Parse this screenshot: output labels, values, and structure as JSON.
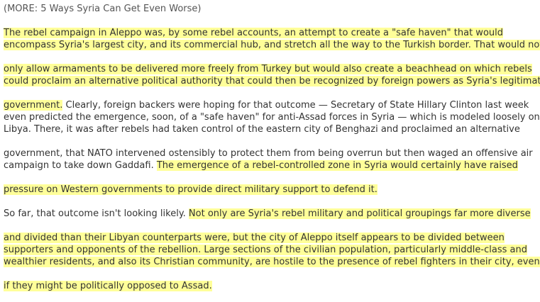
{
  "article": {
    "more_link": "(MORE: 5 Ways Syria Can Get Even Worse)",
    "highlight_color": "#ffff99",
    "lines": [
      {
        "segments": [
          {
            "text": "The rebel campaign in Aleppo was, by some rebel accounts, an attempt to create a \"safe haven\" that would",
            "hl": true
          }
        ]
      },
      {
        "segments": [
          {
            "text": "encompass Syria's largest city, and its commercial hub, and stretch all the way to the Turkish border. That would not",
            "hl": true
          }
        ]
      },
      {
        "segments": [
          {
            "text": "only allow armaments to be delivered more freely from Turkey but would also create a beachhead on which rebels",
            "hl": true
          }
        ]
      },
      {
        "segments": [
          {
            "text": "could proclaim an alternative political authority that could then be recognized by foreign powers as Syria's legitimate",
            "hl": true
          }
        ]
      },
      {
        "segments": [
          {
            "text": "government.",
            "hl": true
          },
          {
            "text": " Clearly, foreign backers were hoping for that outcome — Secretary of State Hillary Clinton last week",
            "hl": false
          }
        ]
      },
      {
        "segments": [
          {
            "text": "even predicted the emergence, soon, of a \"safe haven\" for anti-Assad forces in Syria — which is modeled loosely on",
            "hl": false
          }
        ]
      },
      {
        "segments": [
          {
            "text": "Libya. There, it was after rebels had taken control of the eastern city of Benghazi and proclaimed an alternative",
            "hl": false
          }
        ]
      },
      {
        "segments": [
          {
            "text": "government, that NATO intervened ostensibly to protect them from being overrun but then waged an offensive air",
            "hl": false
          }
        ]
      },
      {
        "segments": [
          {
            "text": "campaign to take down Gaddafi. ",
            "hl": false
          },
          {
            "text": "The emergence of a rebel-controlled zone in Syria would certainly have raised",
            "hl": true
          }
        ]
      },
      {
        "segments": [
          {
            "text": "pressure on Western governments to provide direct military support to defend it.",
            "hl": true
          }
        ]
      },
      {
        "segments": [
          {
            "text": "So far, that outcome isn't looking likely. ",
            "hl": false
          },
          {
            "text": "Not only are Syria's rebel military and political groupings far more diverse",
            "hl": true
          }
        ]
      },
      {
        "segments": [
          {
            "text": "and divided than their Libyan counterparts were, but the city of Aleppo itself appears to be divided between",
            "hl": true
          }
        ]
      },
      {
        "segments": [
          {
            "text": "supporters and opponents of the rebellion. Large sections of the civilian population, particularly middle-class and",
            "hl": true
          }
        ]
      },
      {
        "segments": [
          {
            "text": "wealthier residents, and also its Christian community, are hostile to the presence of rebel fighters in their city, even",
            "hl": true
          }
        ]
      },
      {
        "segments": [
          {
            "text": "if they might be politically opposed to Assad.",
            "hl": true
          }
        ]
      }
    ]
  }
}
